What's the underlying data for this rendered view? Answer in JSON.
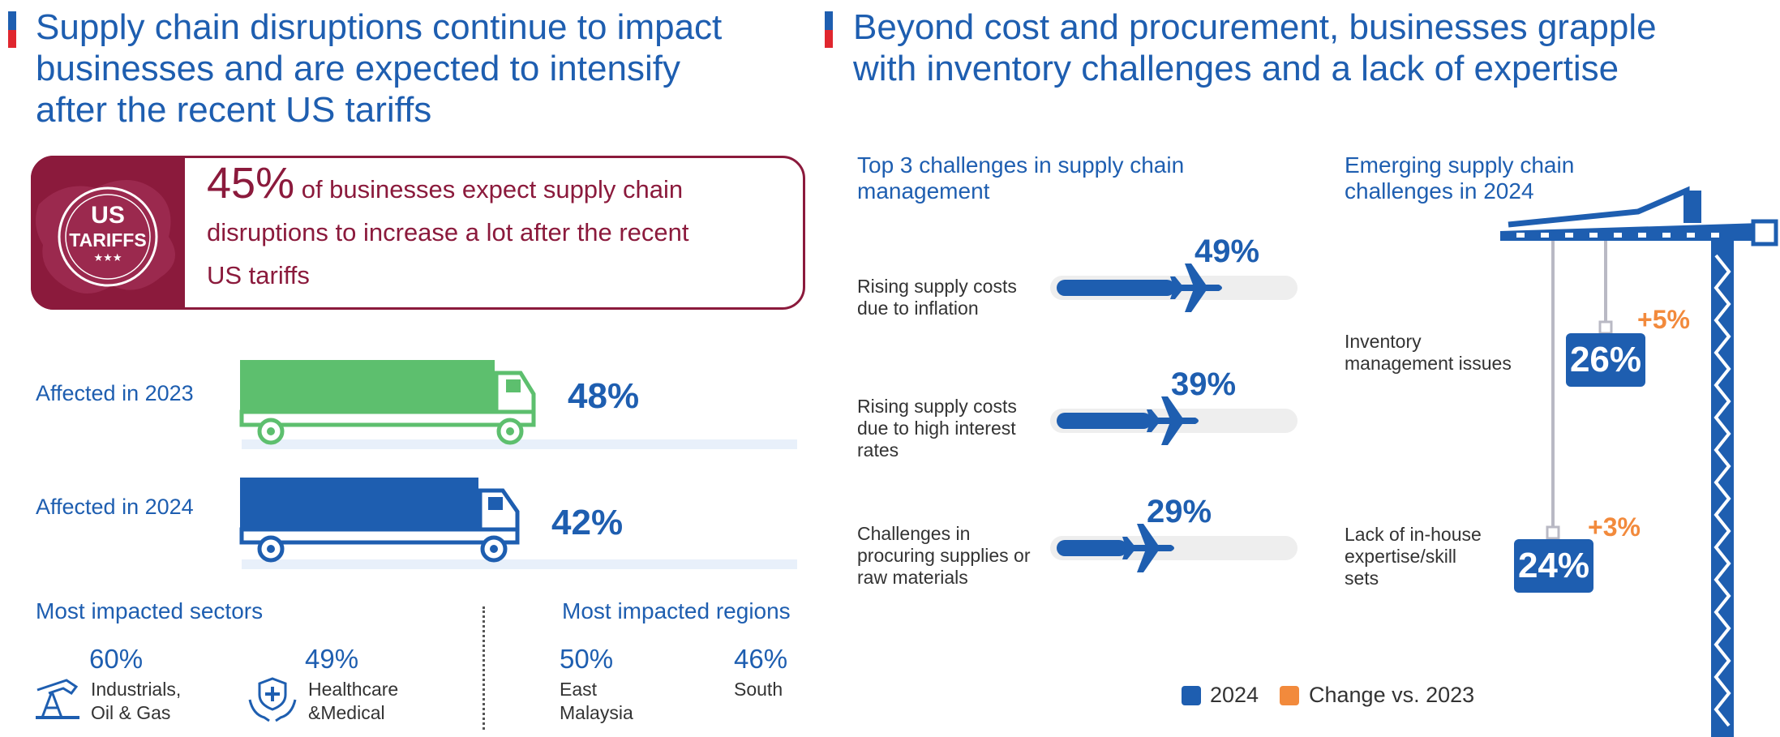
{
  "left": {
    "title_lines": [
      "Supply chain disruptions continue to impact",
      "businesses and are expected to intensify",
      "after the recent US tariffs"
    ],
    "callout": {
      "badge_line1": "US",
      "badge_line2": "TARIFFS",
      "badge_stars": "★★★",
      "percent": "45%",
      "text_part1": " of businesses expect supply chain",
      "text_part2": "disruptions to increase a lot after the recent",
      "text_part3": "US tariffs"
    },
    "affected": [
      {
        "label": "Affected in 2023",
        "value": "48%",
        "color": "#5dbf6e"
      },
      {
        "label": "Affected in 2024",
        "value": "42%",
        "color": "#1e5eb0"
      }
    ],
    "sectors": {
      "title": "Most impacted sectors",
      "items": [
        {
          "value": "60%",
          "label_line1": "Industrials,",
          "label_line2": "Oil & Gas",
          "icon": "oil-pump-icon"
        },
        {
          "value": "49%",
          "label_line1": "Healthcare",
          "label_line2": "&Medical",
          "icon": "medical-hands-icon"
        }
      ]
    },
    "regions": {
      "title": "Most impacted regions",
      "items": [
        {
          "value": "50%",
          "label_line1": "East",
          "label_line2": "Malaysia"
        },
        {
          "value": "46%",
          "label_line1": "South",
          "label_line2": ""
        }
      ]
    }
  },
  "right": {
    "title_lines": [
      "Beyond cost and procurement, businesses grapple",
      "with inventory challenges and a lack of expertise"
    ],
    "challenges": {
      "title_line1": "Top 3 challenges in supply chain",
      "title_line2": "management",
      "items": [
        {
          "label_lines": [
            "Rising supply costs",
            "due to inflation"
          ],
          "value": "49%",
          "fraction": 0.49
        },
        {
          "label_lines": [
            "Rising supply costs",
            "due to high interest",
            "rates"
          ],
          "value": "39%",
          "fraction": 0.39
        },
        {
          "label_lines": [
            "Challenges in",
            "procuring supplies or",
            "raw materials"
          ],
          "value": "29%",
          "fraction": 0.29
        }
      ]
    },
    "emerging": {
      "title_line1": "Emerging supply chain",
      "title_line2": "challenges in 2024",
      "items": [
        {
          "label_lines": [
            "Inventory",
            "management issues"
          ],
          "value": "26%",
          "change": "+5%"
        },
        {
          "label_lines": [
            "Lack of in-house",
            "expertise/skill",
            "sets"
          ],
          "value": "24%",
          "change": "+3%"
        }
      ]
    },
    "legend": [
      {
        "label": "2024",
        "color": "#1e5eb0"
      },
      {
        "label": "Change vs. 2023",
        "color": "#f28a3c"
      }
    ]
  }
}
